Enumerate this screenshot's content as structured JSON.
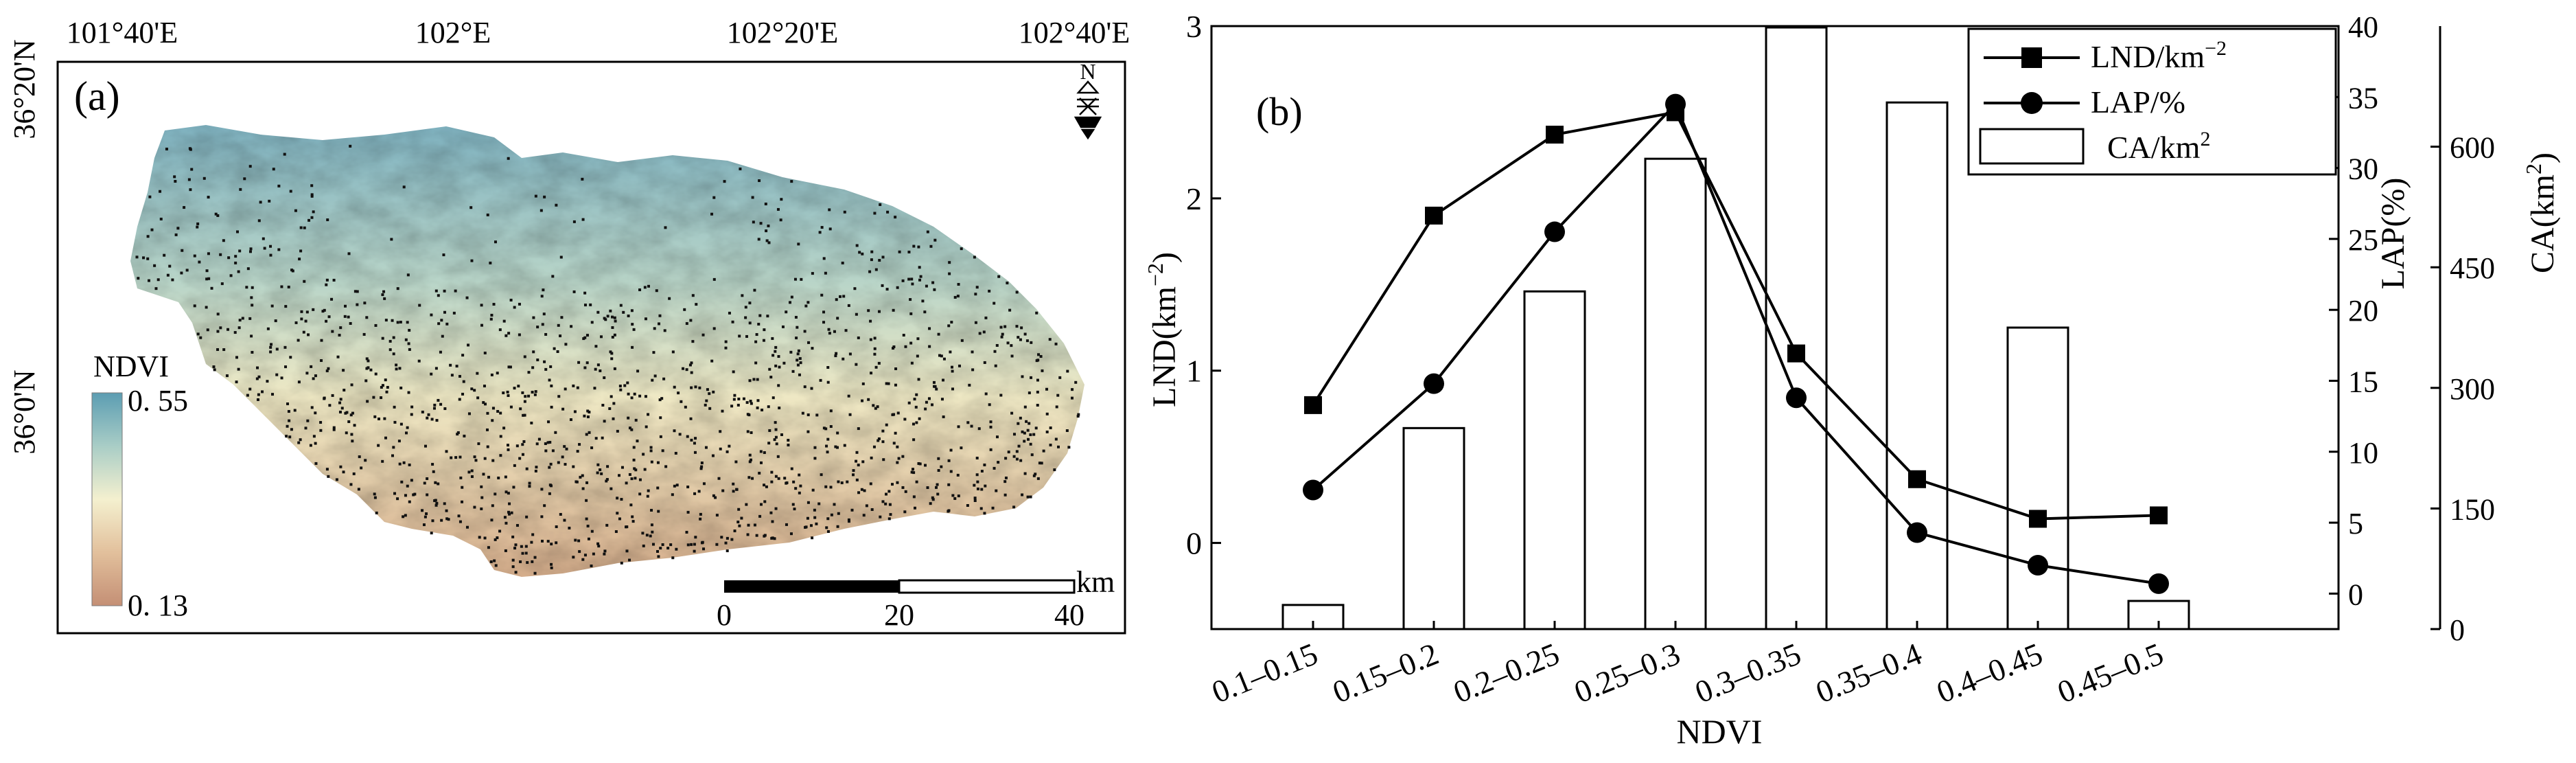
{
  "map_panel": {
    "label": "(a)",
    "top_ticks": [
      "101°40'E",
      "102°E",
      "102°20'E",
      "102°40'E"
    ],
    "left_ticks": [
      "36°20'N",
      "36°0'N"
    ],
    "legend": {
      "title": "NDVI",
      "max_label": "0. 55",
      "min_label": "0. 13",
      "max_value": 0.55,
      "min_value": 0.13
    },
    "scale_bar": {
      "labels": [
        "0",
        "20",
        "40"
      ],
      "unit": "km"
    },
    "north_arrow": {
      "letter": "N",
      "icon": "north-arrow-icon"
    },
    "colors": {
      "ndvi_low": "#c9967a",
      "ndvi_mid": "#f3efce",
      "ndvi_high": "#5fa0b4",
      "points": "#000000"
    }
  },
  "chart_data": {
    "type": "bar",
    "label": "(b)",
    "title": "",
    "xlabel": "NDVI",
    "categories": [
      "0.1–0.15",
      "0.15–0.2",
      "0.2–0.25",
      "0.25–0.3",
      "0.3–0.35",
      "0.35–0.4",
      "0.4–0.45",
      "0.45–0.5"
    ],
    "axes": {
      "left": {
        "label_main": "LND(km",
        "label_sup": "−2",
        "label_end": ")",
        "ylim": [
          -0.5,
          3
        ],
        "ticks": [
          0,
          1,
          2,
          3
        ]
      },
      "right1": {
        "label": "LAP(%)",
        "ylim": [
          -2.5,
          40
        ],
        "ticks": [
          0,
          5,
          10,
          15,
          20,
          25,
          30,
          35,
          40
        ]
      },
      "right2": {
        "label_main": "CA(km",
        "label_sup": "2",
        "label_end": ")",
        "ylim": [
          0,
          750
        ],
        "ticks": [
          0,
          150,
          300,
          450,
          600
        ]
      }
    },
    "series": [
      {
        "name": "CA/km",
        "name_sup": "2",
        "type": "bar",
        "axis": "right2",
        "values": [
          30,
          250,
          420,
          585,
          785,
          655,
          375,
          35
        ]
      },
      {
        "name": "LND/km",
        "name_sup": "−2",
        "type": "line",
        "marker": "square",
        "axis": "left",
        "values": [
          0.8,
          1.9,
          2.37,
          2.5,
          1.1,
          0.37,
          0.14,
          0.16
        ]
      },
      {
        "name": "LAP/%",
        "type": "line",
        "marker": "circle",
        "axis": "right1",
        "values": [
          7.3,
          14.8,
          25.5,
          34.5,
          13.8,
          4.3,
          2.0,
          0.7
        ]
      }
    ],
    "legend_position": "top-right",
    "grid": false
  }
}
